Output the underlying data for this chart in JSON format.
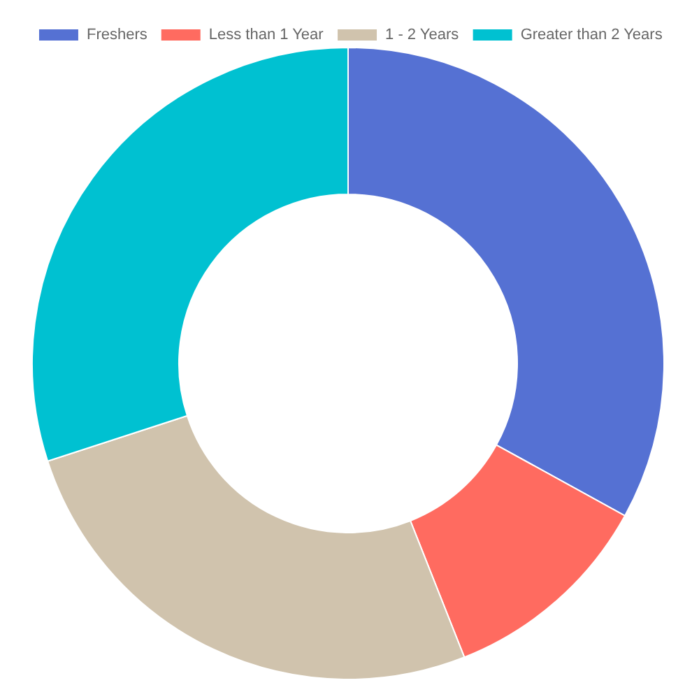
{
  "chart_data": {
    "type": "donut",
    "categories": [
      "Freshers",
      "Less than 1 Year",
      "1 - 2 Years",
      "Greater than 2 Years"
    ],
    "values": [
      33,
      11,
      26,
      30
    ],
    "colors": [
      "#5571d3",
      "#ff6b60",
      "#d0c3ad",
      "#00c1d1"
    ],
    "legend": "top"
  }
}
